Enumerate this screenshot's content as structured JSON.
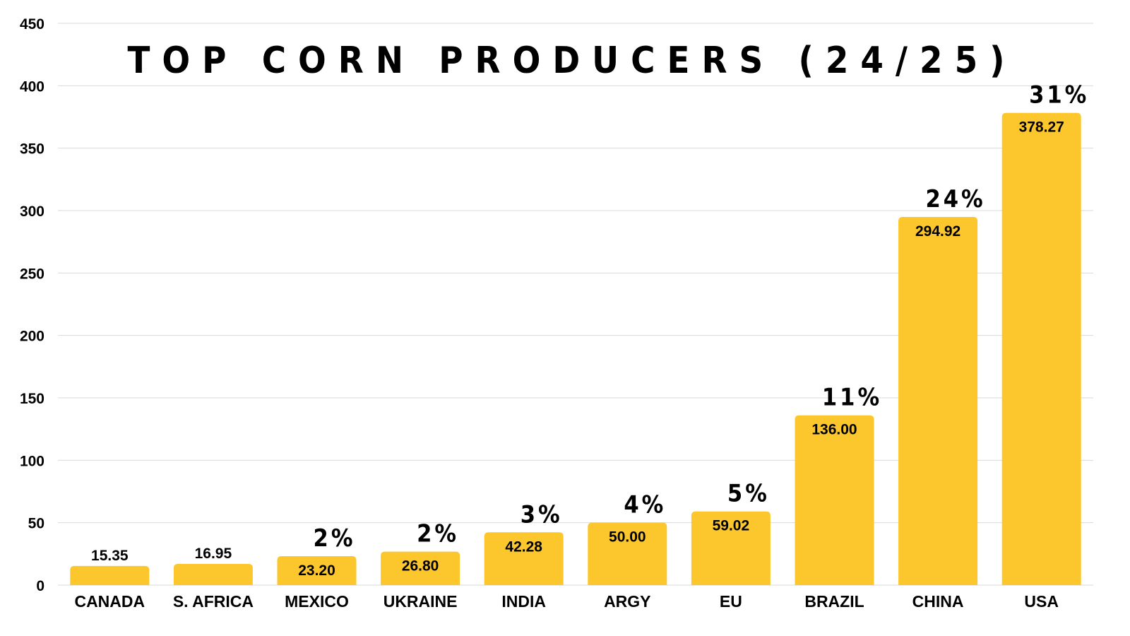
{
  "chart_data": {
    "type": "bar",
    "title": "TOP CORN PRODUCERS (24/25)",
    "xlabel": "",
    "ylabel": "",
    "ylim": [
      0,
      450
    ],
    "yticks": [
      0,
      50,
      100,
      150,
      200,
      250,
      300,
      350,
      400,
      450
    ],
    "grid": true,
    "bar_color": "#FCC72C",
    "categories": [
      "CANADA",
      "S. AFRICA",
      "MEXICO",
      "UKRAINE",
      "INDIA",
      "ARGY",
      "EU",
      "BRAZIL",
      "CHINA",
      "USA"
    ],
    "values": [
      15.35,
      16.95,
      23.2,
      26.8,
      42.28,
      50.0,
      59.02,
      136.0,
      294.92,
      378.27
    ],
    "value_labels": [
      "15.35",
      "16.95",
      "23.20",
      "26.80",
      "42.28",
      "50.00",
      "59.02",
      "136.00",
      "294.92",
      "378.27"
    ],
    "share_labels": [
      "",
      "",
      "2%",
      "2%",
      "3%",
      "4%",
      "5%",
      "11%",
      "24%",
      "31%"
    ]
  }
}
